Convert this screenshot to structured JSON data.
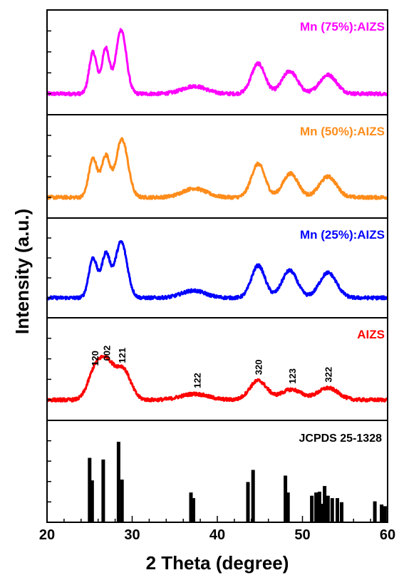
{
  "chart_data": {
    "type": "line",
    "layout": "stacked-panels",
    "xlabel": "2 Theta (degree)",
    "ylabel": "Intensity (a.u.)",
    "xlim": [
      20,
      60
    ],
    "xticks": [
      20,
      30,
      40,
      50,
      60
    ],
    "grid": false,
    "panels": [
      {
        "name": "Mn (75%):AIZS",
        "color": "#ff00ff",
        "baseline": 0.18,
        "peaks": [
          {
            "x": 25.4,
            "h": 0.55,
            "w": 0.45
          },
          {
            "x": 26.9,
            "h": 0.6,
            "w": 0.45
          },
          {
            "x": 28.7,
            "h": 0.85,
            "w": 0.6
          },
          {
            "x": 37.3,
            "h": 0.1,
            "w": 1.4
          },
          {
            "x": 44.8,
            "h": 0.4,
            "w": 0.8
          },
          {
            "x": 48.5,
            "h": 0.3,
            "w": 0.9
          },
          {
            "x": 53.0,
            "h": 0.25,
            "w": 1.0
          }
        ]
      },
      {
        "name": "Mn (50%):AIZS",
        "color": "#ff8c1a",
        "baseline": 0.18,
        "peaks": [
          {
            "x": 25.4,
            "h": 0.52,
            "w": 0.5
          },
          {
            "x": 26.9,
            "h": 0.55,
            "w": 0.5
          },
          {
            "x": 28.8,
            "h": 0.78,
            "w": 0.7
          },
          {
            "x": 37.3,
            "h": 0.12,
            "w": 1.4
          },
          {
            "x": 44.8,
            "h": 0.45,
            "w": 0.8
          },
          {
            "x": 48.6,
            "h": 0.32,
            "w": 0.9
          },
          {
            "x": 53.0,
            "h": 0.28,
            "w": 1.0
          }
        ]
      },
      {
        "name": "Mn (25%):AIZS",
        "color": "#0000ff",
        "baseline": 0.2,
        "peaks": [
          {
            "x": 25.4,
            "h": 0.55,
            "w": 0.5
          },
          {
            "x": 26.9,
            "h": 0.6,
            "w": 0.5
          },
          {
            "x": 28.7,
            "h": 0.78,
            "w": 0.7
          },
          {
            "x": 37.2,
            "h": 0.1,
            "w": 1.4
          },
          {
            "x": 44.8,
            "h": 0.45,
            "w": 0.8
          },
          {
            "x": 48.5,
            "h": 0.38,
            "w": 0.9
          },
          {
            "x": 53.0,
            "h": 0.35,
            "w": 1.0
          }
        ]
      },
      {
        "name": "AIZS",
        "color": "#ff0000",
        "baseline": 0.15,
        "peaks": [
          {
            "x": 25.6,
            "h": 0.38,
            "w": 0.8
          },
          {
            "x": 27.0,
            "h": 0.45,
            "w": 0.8
          },
          {
            "x": 28.9,
            "h": 0.42,
            "w": 0.9
          },
          {
            "x": 37.3,
            "h": 0.08,
            "w": 1.6
          },
          {
            "x": 44.8,
            "h": 0.26,
            "w": 1.0
          },
          {
            "x": 48.7,
            "h": 0.14,
            "w": 1.2
          },
          {
            "x": 53.0,
            "h": 0.16,
            "w": 1.2
          }
        ],
        "annotations": [
          {
            "x": 25.6,
            "text": "120"
          },
          {
            "x": 27.0,
            "text": "002"
          },
          {
            "x": 28.8,
            "text": "121"
          },
          {
            "x": 37.6,
            "text": "122"
          },
          {
            "x": 44.8,
            "text": "320"
          },
          {
            "x": 48.8,
            "text": "123"
          },
          {
            "x": 53.0,
            "text": "322"
          }
        ]
      }
    ],
    "reference": {
      "name": "JCPDS 25-1328",
      "color": "#000000",
      "lines": [
        {
          "x": 25.0,
          "i": 0.8
        },
        {
          "x": 25.3,
          "i": 0.52
        },
        {
          "x": 26.6,
          "i": 0.78
        },
        {
          "x": 28.4,
          "i": 1.0
        },
        {
          "x": 28.8,
          "i": 0.53
        },
        {
          "x": 36.9,
          "i": 0.37
        },
        {
          "x": 37.2,
          "i": 0.3
        },
        {
          "x": 43.6,
          "i": 0.5
        },
        {
          "x": 44.2,
          "i": 0.65
        },
        {
          "x": 48.0,
          "i": 0.58
        },
        {
          "x": 48.3,
          "i": 0.37
        },
        {
          "x": 51.1,
          "i": 0.33
        },
        {
          "x": 51.6,
          "i": 0.37
        },
        {
          "x": 52.0,
          "i": 0.38
        },
        {
          "x": 52.3,
          "i": 0.23
        },
        {
          "x": 52.6,
          "i": 0.45
        },
        {
          "x": 53.0,
          "i": 0.33
        },
        {
          "x": 53.5,
          "i": 0.3
        },
        {
          "x": 54.1,
          "i": 0.3
        },
        {
          "x": 54.6,
          "i": 0.25
        },
        {
          "x": 58.5,
          "i": 0.26
        },
        {
          "x": 59.3,
          "i": 0.22
        },
        {
          "x": 59.7,
          "i": 0.2
        }
      ]
    }
  }
}
